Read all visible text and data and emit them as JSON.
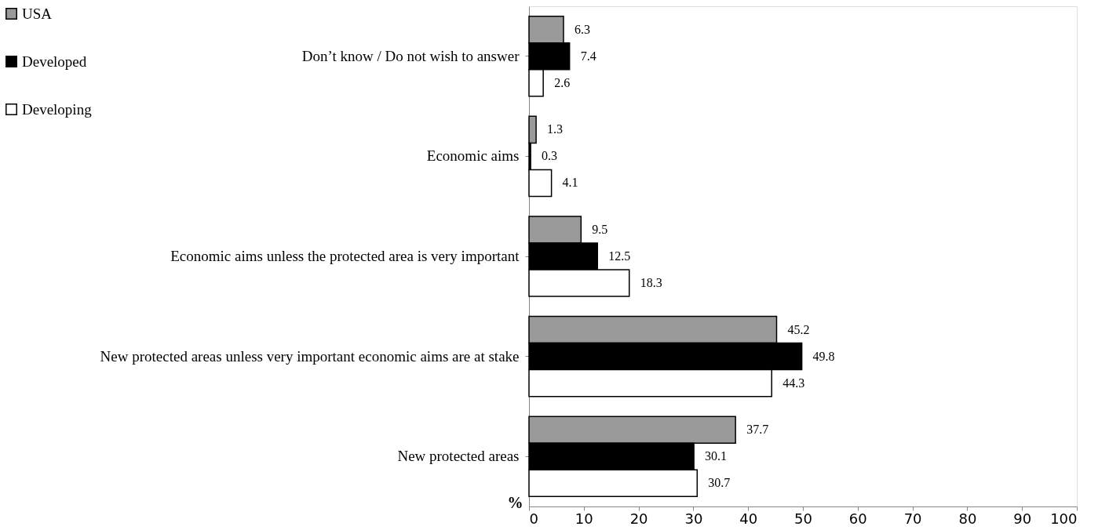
{
  "chart_data": {
    "type": "bar",
    "orientation": "horizontal",
    "ylabel": "%",
    "categories": [
      "Don’t know / Do not wish to answer",
      "Economic aims",
      "Economic aims unless the protected area is very important",
      "New protected areas unless very important economic aims are at stake",
      "New protected areas"
    ],
    "series": [
      {
        "name": "USA",
        "color": "#9a9a9a",
        "values": [
          6.3,
          1.3,
          9.5,
          45.2,
          37.7
        ]
      },
      {
        "name": "Developed",
        "color": "#000000",
        "values": [
          7.4,
          0.3,
          12.5,
          49.8,
          30.1
        ]
      },
      {
        "name": "Developing",
        "color": "#ffffff",
        "values": [
          2.6,
          4.1,
          18.3,
          44.3,
          30.7
        ]
      }
    ],
    "xlim": [
      0,
      100
    ],
    "xticks": [
      0,
      10,
      20,
      30,
      40,
      50,
      60,
      70,
      80,
      90,
      100
    ],
    "data_labels": true,
    "legend": "top left",
    "grid": false
  }
}
